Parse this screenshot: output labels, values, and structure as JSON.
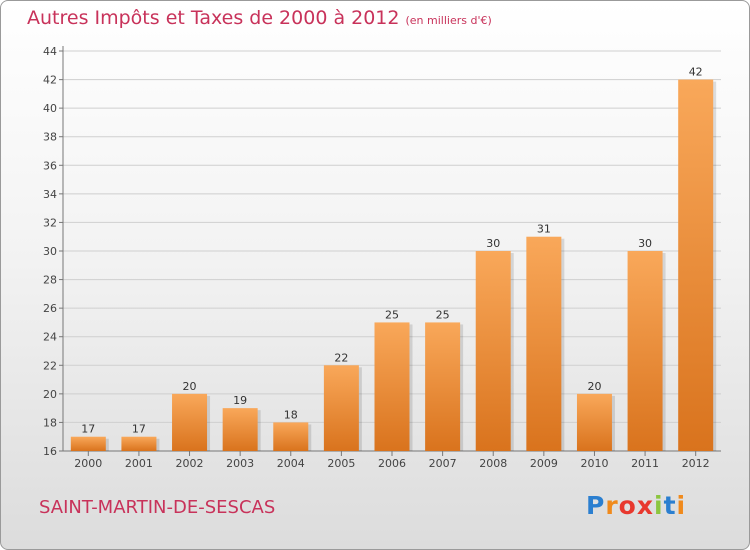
{
  "header": {
    "title": "Autres Impôts et Taxes de 2000 à 2012",
    "subtitle": "(en milliers d'€)"
  },
  "footer": {
    "commune": "SAINT-MARTIN-DE-SESCAS",
    "brand_letters": [
      "P",
      "r",
      "o",
      "x",
      "i",
      "t",
      "i"
    ],
    "brand_colors": [
      "#2b7fd0",
      "#f08a1c",
      "#e8382e",
      "#e8382e",
      "#8cc63f",
      "#2b7fd0",
      "#f08a1c"
    ]
  },
  "colors": {
    "bar_light": "#f9a85a",
    "bar_dark": "#d9731d",
    "title": "#c8325a"
  },
  "chart_data": {
    "type": "bar",
    "title": "Autres Impôts et Taxes de 2000 à 2012",
    "subtitle": "(en milliers d'€)",
    "categories": [
      "2000",
      "2001",
      "2002",
      "2003",
      "2004",
      "2005",
      "2006",
      "2007",
      "2008",
      "2009",
      "2010",
      "2011",
      "2012"
    ],
    "values": [
      17,
      17,
      20,
      19,
      18,
      22,
      25,
      25,
      30,
      31,
      20,
      30,
      42
    ],
    "ylim": [
      16,
      44
    ],
    "yticks": [
      16,
      18,
      20,
      22,
      24,
      26,
      28,
      30,
      32,
      34,
      36,
      38,
      40,
      42,
      44
    ],
    "grid": true,
    "legend": "none"
  }
}
